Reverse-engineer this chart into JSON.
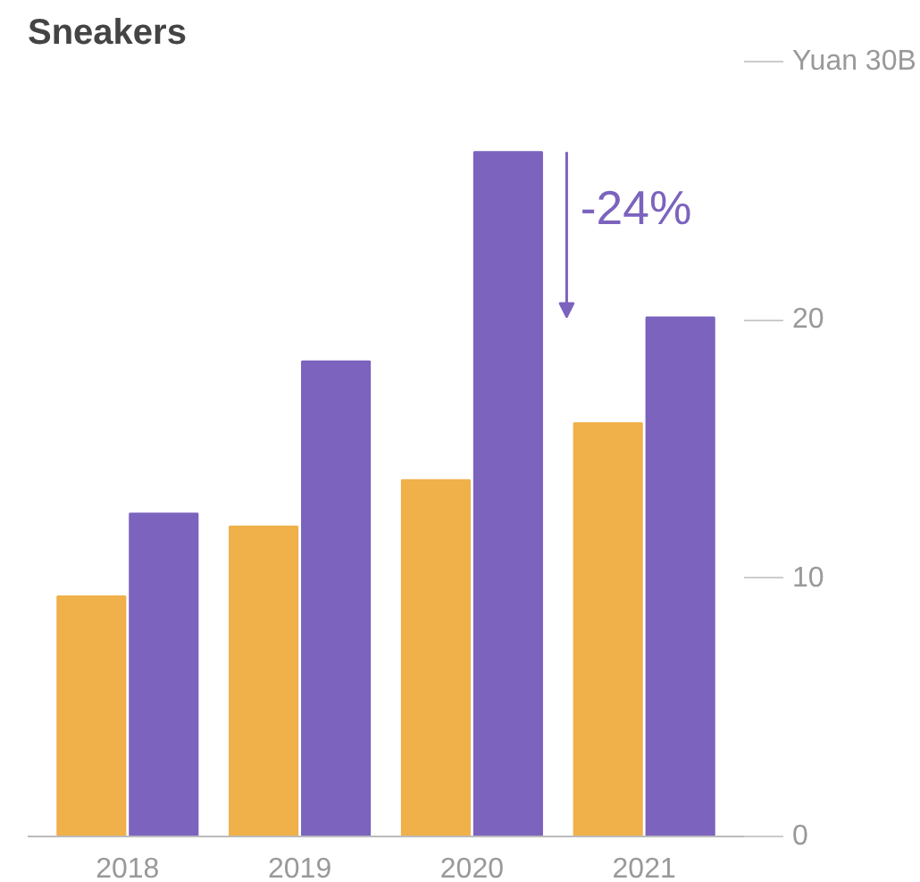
{
  "chart_data": {
    "type": "bar",
    "title": "Sneakers",
    "categories": [
      "2018",
      "2019",
      "2020",
      "2021"
    ],
    "series": [
      {
        "color": "#f0b04a",
        "values": [
          9.3,
          12.0,
          13.8,
          16.0
        ]
      },
      {
        "color": "#7b63be",
        "values": [
          12.5,
          18.4,
          26.5,
          20.1
        ]
      }
    ],
    "ylim": [
      0,
      30
    ],
    "yticks": [
      0,
      10,
      20,
      {
        "value": 30,
        "label": "Yuan 30B"
      }
    ],
    "grid": false,
    "annotations": [
      "-24%"
    ]
  }
}
